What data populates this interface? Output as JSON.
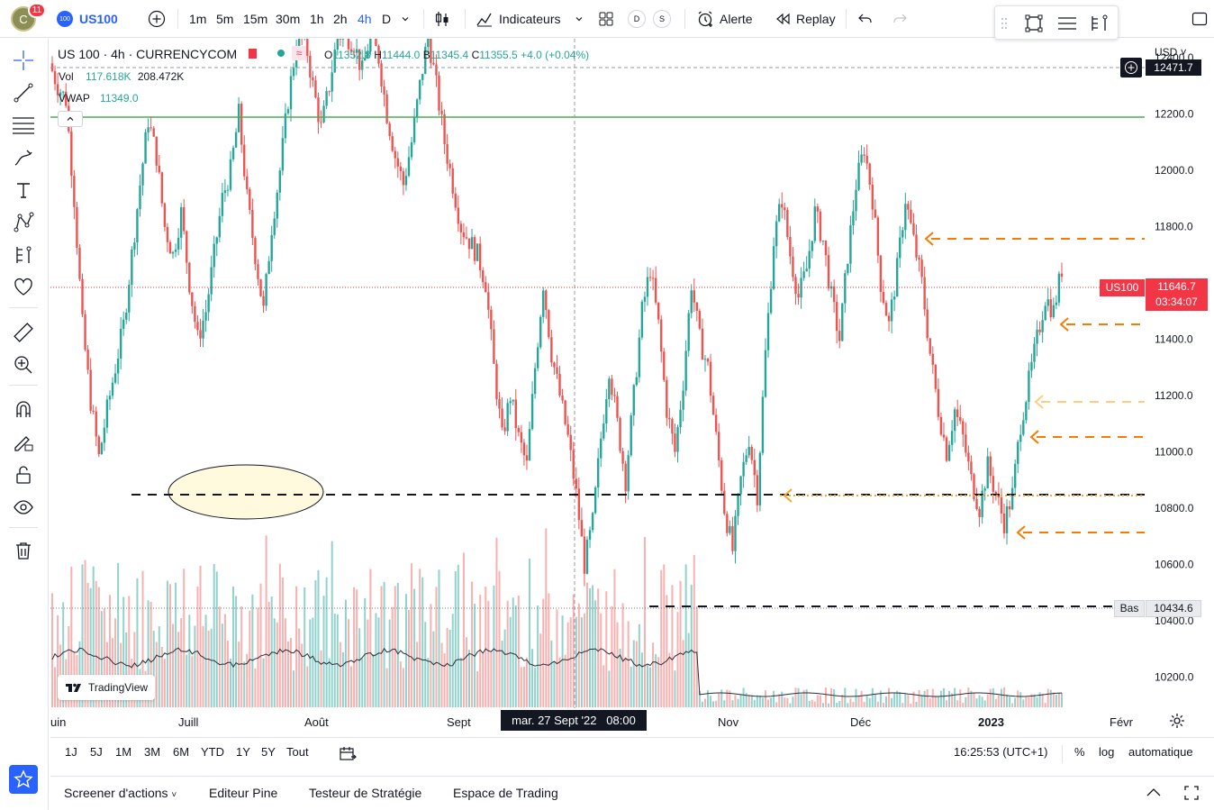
{
  "header": {
    "avatar_letter": "C",
    "notif_count": "11",
    "symbol_icon_text": "100",
    "symbol": "US100",
    "intervals": [
      "1m",
      "5m",
      "15m",
      "30m",
      "1h",
      "2h",
      "4h",
      "D"
    ],
    "active_interval": "4h",
    "indicators_label": "Indicateurs",
    "d_label": "D",
    "s_label": "S",
    "alert_label": "Alerte",
    "replay_label": "Replay"
  },
  "legend": {
    "title": "US 100 · 4h · CURRENCYCOM",
    "o_label": "O",
    "o_val": "11352.8",
    "h_label": "H",
    "h_val": "11444.0",
    "b_label": "B",
    "b_val": "11345.4",
    "c_label": "C",
    "c_val": "11355.5",
    "change": "+4.0 (+0.04%)",
    "vol_label": "Vol",
    "vol_val1": "117.618K",
    "vol_val2": "208.472K",
    "vwap_label": "VWAP",
    "vwap_val": "11349.0"
  },
  "price_axis": {
    "currency": "USD",
    "labels": [
      "12400.0",
      "12200.0",
      "12000.0",
      "11800.0",
      "11600.0",
      "11400.0",
      "11200.0",
      "11000.0",
      "10800.0",
      "10600.0",
      "10400.0",
      "10200.0"
    ],
    "crosshair_price": "12471.7",
    "last_symbol": "US100",
    "last_price": "11646.7",
    "countdown": "03:34:07",
    "low_label": "Bas",
    "low_price": "10434.6"
  },
  "time_axis": {
    "labels": [
      "uin",
      "Juill",
      "Août",
      "Sept",
      "Nov",
      "Déc",
      "2023",
      "Févr"
    ],
    "crosshair_time": "mar. 27 Sept '22   08:00"
  },
  "watermark": "TradingView",
  "bottom": {
    "ranges": [
      "1J",
      "5J",
      "1M",
      "3M",
      "6M",
      "YTD",
      "1Y",
      "5Y",
      "Tout"
    ],
    "clock": "16:25:53 (UTC+1)",
    "pct": "%",
    "log": "log",
    "auto": "automatique"
  },
  "panels": {
    "screener": "Screener d'actions",
    "pine": "Editeur Pine",
    "tester": "Testeur de Stratégie",
    "trading": "Espace de Trading"
  },
  "colors": {
    "up": "#26a69a",
    "down": "#ef5350",
    "accent": "#2962ff",
    "green_line": "#4caf50",
    "orange": "#f57c00"
  },
  "chart_data": {
    "type": "candlestick",
    "ylim": [
      10100,
      12480
    ],
    "path_points": [
      [
        0,
        12380
      ],
      [
        1,
        12300
      ],
      [
        2,
        12250
      ],
      [
        3,
        11900
      ],
      [
        4,
        11450
      ],
      [
        5,
        11180
      ],
      [
        6,
        10980
      ],
      [
        7,
        11150
      ],
      [
        8,
        11300
      ],
      [
        9,
        11450
      ],
      [
        10,
        11700
      ],
      [
        11,
        11950
      ],
      [
        12,
        12180
      ],
      [
        13,
        12050
      ],
      [
        14,
        11800
      ],
      [
        15,
        11700
      ],
      [
        16,
        11850
      ],
      [
        17,
        11600
      ],
      [
        18,
        11400
      ],
      [
        19,
        11500
      ],
      [
        20,
        11700
      ],
      [
        21,
        11900
      ],
      [
        22,
        12000
      ],
      [
        23,
        12200
      ],
      [
        24,
        11900
      ],
      [
        25,
        11700
      ],
      [
        26,
        11500
      ],
      [
        27,
        11800
      ],
      [
        28,
        12000
      ],
      [
        29,
        12250
      ],
      [
        30,
        12450
      ],
      [
        31,
        12480
      ],
      [
        32,
        12300
      ],
      [
        33,
        12150
      ],
      [
        34,
        12300
      ],
      [
        35,
        12480
      ],
      [
        36,
        12480
      ],
      [
        37,
        12450
      ],
      [
        38,
        12350
      ],
      [
        39,
        12480
      ],
      [
        40,
        12400
      ],
      [
        41,
        12200
      ],
      [
        42,
        12050
      ],
      [
        43,
        11950
      ],
      [
        44,
        12100
      ],
      [
        45,
        12300
      ],
      [
        46,
        12480
      ],
      [
        47,
        12300
      ],
      [
        48,
        12100
      ],
      [
        49,
        11950
      ],
      [
        50,
        11800
      ],
      [
        51,
        11750
      ],
      [
        52,
        11700
      ],
      [
        53,
        11600
      ],
      [
        54,
        11300
      ],
      [
        55,
        11050
      ],
      [
        56,
        11200
      ],
      [
        57,
        11050
      ],
      [
        58,
        10950
      ],
      [
        59,
        11300
      ],
      [
        60,
        11600
      ],
      [
        61,
        11350
      ],
      [
        62,
        11200
      ],
      [
        63,
        11050
      ],
      [
        64,
        10850
      ],
      [
        65,
        10600
      ],
      [
        66,
        10750
      ],
      [
        67,
        11050
      ],
      [
        68,
        11300
      ],
      [
        69,
        11100
      ],
      [
        70,
        10900
      ],
      [
        71,
        11200
      ],
      [
        72,
        11500
      ],
      [
        73,
        11650
      ],
      [
        74,
        11450
      ],
      [
        75,
        11150
      ],
      [
        76,
        11000
      ],
      [
        77,
        11250
      ],
      [
        78,
        11600
      ],
      [
        79,
        11400
      ],
      [
        80,
        11300
      ],
      [
        81,
        11050
      ],
      [
        82,
        10800
      ],
      [
        83,
        10650
      ],
      [
        84,
        10900
      ],
      [
        85,
        11050
      ],
      [
        86,
        10850
      ],
      [
        87,
        11350
      ],
      [
        88,
        11750
      ],
      [
        89,
        11900
      ],
      [
        90,
        11700
      ],
      [
        91,
        11550
      ],
      [
        92,
        11650
      ],
      [
        93,
        11850
      ],
      [
        94,
        11750
      ],
      [
        95,
        11550
      ],
      [
        96,
        11400
      ],
      [
        97,
        11700
      ],
      [
        98,
        11950
      ],
      [
        99,
        12080
      ],
      [
        100,
        11900
      ],
      [
        101,
        11600
      ],
      [
        102,
        11450
      ],
      [
        103,
        11650
      ],
      [
        104,
        11900
      ],
      [
        105,
        11750
      ],
      [
        106,
        11600
      ],
      [
        107,
        11350
      ],
      [
        108,
        11150
      ],
      [
        109,
        11000
      ],
      [
        110,
        11150
      ],
      [
        111,
        11050
      ],
      [
        112,
        10900
      ],
      [
        113,
        10800
      ],
      [
        114,
        10950
      ],
      [
        115,
        10850
      ],
      [
        116,
        10750
      ],
      [
        117,
        10850
      ],
      [
        118,
        11100
      ],
      [
        119,
        11250
      ],
      [
        120,
        11400
      ],
      [
        121,
        11550
      ],
      [
        122,
        11500
      ],
      [
        123,
        11650
      ]
    ]
  }
}
